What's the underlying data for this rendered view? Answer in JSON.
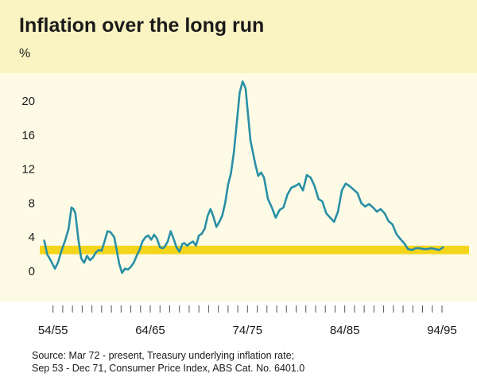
{
  "colors": {
    "header_band": "#faf3c2",
    "plot_band": "#fdfbe6",
    "target_band": "#f5d51a",
    "line": "#2a8fa6",
    "text": "#1a1a1a",
    "axis": "#555555"
  },
  "chart_data": {
    "type": "line",
    "title": "Inflation over the long run",
    "ylabel": "%",
    "xlabel": "",
    "ylim": [
      -2,
      23
    ],
    "yticks": [
      0,
      4,
      8,
      12,
      16,
      20
    ],
    "x_tick_labels": [
      {
        "label": "54/55",
        "x": 1954.5
      },
      {
        "label": "64/65",
        "x": 1964.5
      },
      {
        "label": "74/75",
        "x": 1974.5
      },
      {
        "label": "84/85",
        "x": 1984.5
      },
      {
        "label": "94/95",
        "x": 1994.5
      }
    ],
    "xlim": [
      1953.3,
      1996.3
    ],
    "target_band": {
      "low": 2,
      "high": 3
    },
    "series": [
      {
        "name": "Inflation",
        "x": [
          1953.6,
          1953.9,
          1954.3,
          1954.7,
          1955.0,
          1955.4,
          1955.8,
          1956.1,
          1956.4,
          1956.6,
          1956.8,
          1957.1,
          1957.4,
          1957.7,
          1958.0,
          1958.3,
          1958.6,
          1958.9,
          1959.2,
          1959.5,
          1959.8,
          1960.1,
          1960.4,
          1960.6,
          1960.8,
          1961.1,
          1961.3,
          1961.6,
          1961.9,
          1962.2,
          1962.5,
          1962.8,
          1963.1,
          1963.4,
          1963.7,
          1964.0,
          1964.3,
          1964.6,
          1964.9,
          1965.2,
          1965.5,
          1965.8,
          1966.0,
          1966.3,
          1966.6,
          1966.9,
          1967.2,
          1967.5,
          1967.8,
          1968.0,
          1968.3,
          1968.6,
          1968.9,
          1969.2,
          1969.5,
          1969.8,
          1970.1,
          1970.4,
          1970.7,
          1971.0,
          1971.3,
          1971.6,
          1971.9,
          1972.2,
          1972.5,
          1972.8,
          1973.1,
          1973.4,
          1973.7,
          1974.0,
          1974.3,
          1974.55,
          1974.8,
          1975.0,
          1975.3,
          1975.6,
          1975.9,
          1976.2,
          1976.6,
          1977.0,
          1977.4,
          1977.8,
          1978.2,
          1978.6,
          1979.0,
          1979.4,
          1979.8,
          1980.2,
          1980.6,
          1981.0,
          1981.4,
          1981.8,
          1982.2,
          1982.6,
          1983.0,
          1983.4,
          1983.8,
          1984.2,
          1984.6,
          1985.0,
          1985.4,
          1985.8,
          1986.2,
          1986.6,
          1987.0,
          1987.4,
          1987.8,
          1988.2,
          1988.6,
          1989.0,
          1989.4,
          1989.8,
          1990.2,
          1990.6,
          1991.0,
          1991.4,
          1991.8,
          1992.2,
          1992.6,
          1993.0,
          1993.4,
          1993.8,
          1994.2,
          1994.6
        ],
        "values": [
          3.6,
          2.0,
          1.2,
          0.3,
          1.0,
          2.5,
          3.8,
          5.0,
          7.5,
          7.3,
          6.8,
          3.8,
          1.5,
          1.0,
          1.8,
          1.3,
          1.6,
          2.2,
          2.5,
          2.4,
          3.5,
          4.7,
          4.6,
          4.3,
          4.0,
          2.2,
          0.9,
          -0.2,
          0.3,
          0.2,
          0.5,
          1.0,
          1.8,
          2.5,
          3.5,
          4.0,
          4.2,
          3.7,
          4.3,
          3.8,
          2.8,
          2.7,
          2.9,
          3.5,
          4.7,
          3.8,
          2.8,
          2.3,
          3.2,
          3.3,
          3.0,
          3.3,
          3.5,
          3.0,
          4.2,
          4.4,
          5.0,
          6.5,
          7.3,
          6.4,
          5.2,
          5.8,
          6.5,
          8.0,
          10.2,
          11.5,
          14.0,
          17.5,
          21.0,
          22.3,
          21.5,
          18.5,
          15.4,
          14.3,
          12.6,
          11.2,
          11.6,
          11.0,
          8.5,
          7.5,
          6.3,
          7.2,
          7.5,
          9.0,
          9.8,
          10.0,
          10.3,
          9.5,
          11.3,
          11.0,
          10.0,
          8.5,
          8.2,
          6.8,
          6.3,
          5.8,
          7.0,
          9.5,
          10.3,
          10.0,
          9.6,
          9.2,
          8.0,
          7.6,
          7.9,
          7.5,
          7.0,
          7.3,
          6.8,
          5.9,
          5.5,
          4.4,
          3.8,
          3.3,
          2.6,
          2.5,
          2.7,
          2.7,
          2.6,
          2.6,
          2.7,
          2.6,
          2.5,
          2.8
        ]
      }
    ],
    "source": [
      "Source: Mar 72 - present, Treasury underlying inflation rate;",
      "Sep 53 - Dec 71, Consumer Price Index, ABS Cat. No. 6401.0"
    ]
  }
}
